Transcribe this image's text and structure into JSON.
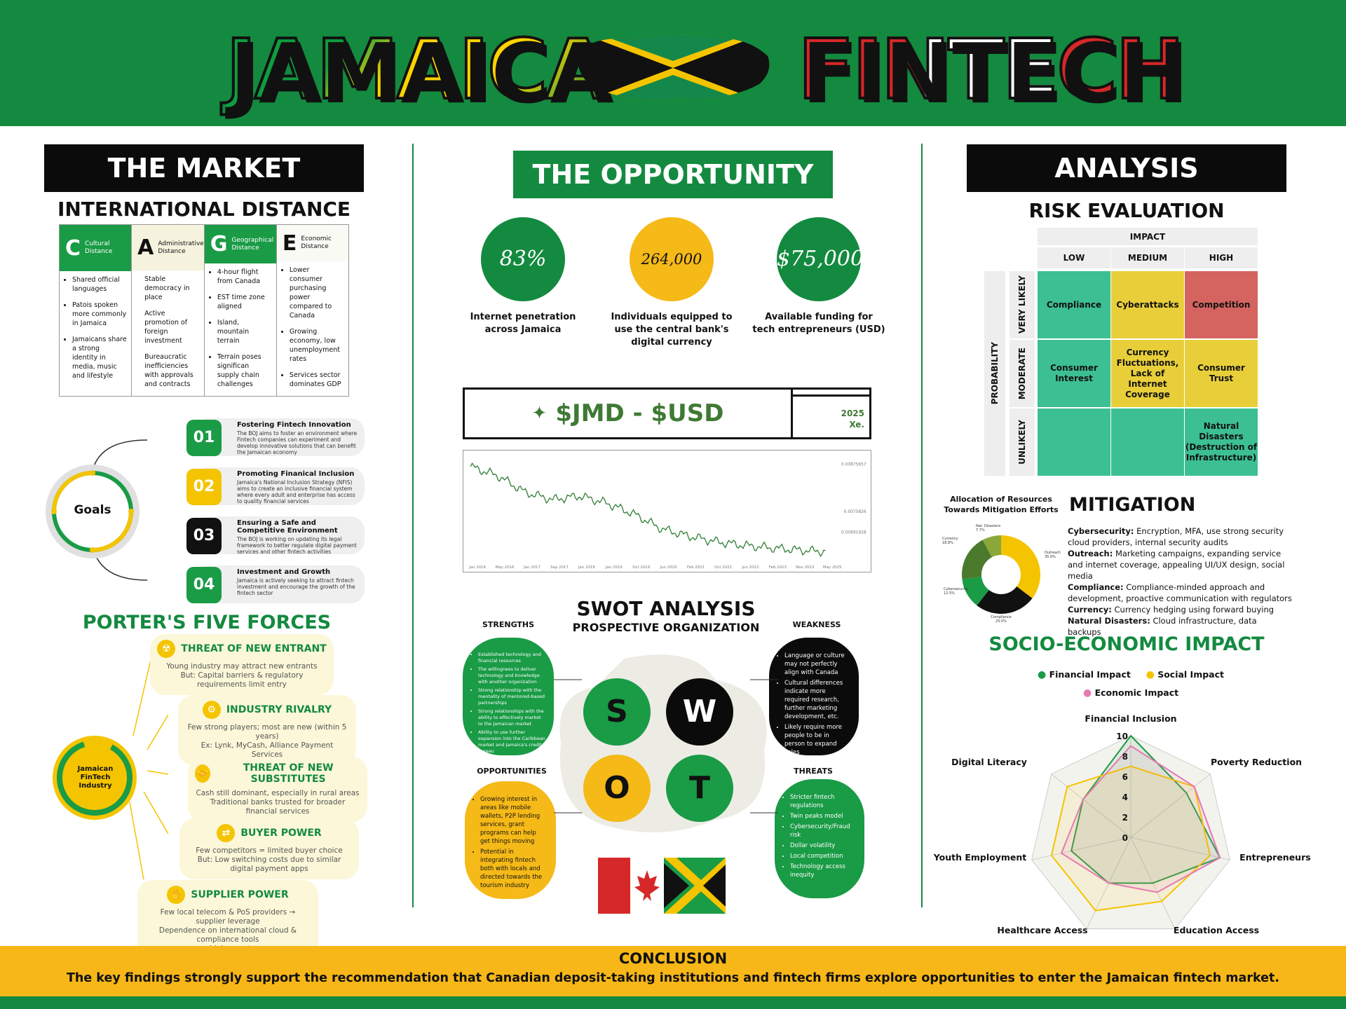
{
  "header": {
    "left_title": "JAMAICA",
    "right_title": "FINTECH"
  },
  "market": {
    "heading": "THE MARKET",
    "cage_heading": "INTERNATIONAL DISTANCE",
    "cage": [
      {
        "letter": "C",
        "label": "Cultural Distance",
        "bullets": [
          "Shared official languages",
          "Patois spoken more commonly in Jamaica",
          "Jamaicans share a strong identity in media, music and lifestyle"
        ]
      },
      {
        "letter": "A",
        "label": "Administrative Distance",
        "bullets": [
          "Stable democracy in place",
          "Active promotion of foreign investment",
          "Bureaucratic inefficiencies with approvals and contracts"
        ]
      },
      {
        "letter": "G",
        "label": "Geographical Distance",
        "bullets": [
          "4-hour flight from Canada",
          "EST time zone aligned",
          "Island, mountain terrain",
          "Terrain poses significan supply chain challenges"
        ]
      },
      {
        "letter": "E",
        "label": "Economic Distance",
        "bullets": [
          "Lower consumer purchasing power compared to Canada",
          "Growing economy, low unemployment rates",
          "Services sector dominates GDP"
        ]
      }
    ],
    "goals_center": "Goals",
    "goals": [
      {
        "num": "01",
        "title": "Fostering Fintech Innovation",
        "desc": "The BOJ aims to foster an environment where Fintech companies can experiment and develop innovative solutions that can benefit the Jamaican economy"
      },
      {
        "num": "02",
        "title": "Promoting Finanical Inclusion",
        "desc": "Jamaica's National Inclusion Strategy (NFIS) aims to create an inclusive financial system where every adult and enterprise has access to quality financial services"
      },
      {
        "num": "03",
        "title": "Ensuring a Safe and Competitive Environment",
        "desc": "The BOJ is working on updating its legal framework to better regulate digital payment services and other fintech activities"
      },
      {
        "num": "04",
        "title": "Investment and Growth",
        "desc": "Jamaica is actively seeking to attract fintech investment and encourage the growth of the fintech sector"
      }
    ],
    "porter_heading": "PORTER'S FIVE FORCES ANALYSIS",
    "porter_center": "Jamaican FinTech Industry",
    "porter": [
      {
        "icon": "radiation-icon",
        "glyph": "☢",
        "title": "THREAT OF NEW ENTRANT",
        "text": "Young industry may attract new entrants\nBut: Capital barriers & regulatory requirements limit entry"
      },
      {
        "icon": "gears-icon",
        "glyph": "⚙",
        "title": "INDUSTRY RIVALRY",
        "text": "Few strong players; most are new (within 5 years)\nEx: Lynk, MyCash, Alliance Payment Services"
      },
      {
        "icon": "handshake-icon",
        "glyph": "🤝",
        "title": "THREAT OF NEW SUBSTITUTES",
        "text": "Cash still dominant, especially in rural areas\nTraditional banks trusted for broader financial services"
      },
      {
        "icon": "exchange-icon",
        "glyph": "⇄",
        "title": "BUYER POWER",
        "text": "Few competitors = limited buyer choice\nBut: Low switching costs due to similar digital payment apps"
      },
      {
        "icon": "hand-coin-icon",
        "glyph": "✋",
        "title": "SUPPLIER POWER",
        "text": "Few local telecom & PoS providers → supplier leverage\nDependence on international cloud & compliance tools\n→ higher costs"
      }
    ]
  },
  "opportunity": {
    "heading": "THE OPPORTUNITY",
    "stats": [
      {
        "value": "83%",
        "label": "Internet penetration across Jamaica",
        "color": "#138a3f",
        "text_color": "#ffffff"
      },
      {
        "value": "264,000",
        "label": "Individuals equipped to use the central bank's digital currency",
        "color": "#f5b918",
        "text_color": "#111111"
      },
      {
        "value": "$75,000",
        "label": "Available funding for tech entrepreneurs (USD)",
        "color": "#138a3f",
        "text_color": "#ffffff"
      }
    ],
    "fx_label": "$JMD - $USD",
    "fx_year": "2025",
    "fx_source": "Xe.",
    "chart_data": {
      "type": "line",
      "title": "",
      "x": [
        "Jan 2016",
        "May 2016",
        "Jan 2017",
        "Sep 2017",
        "Jan 2018",
        "Jan 2019",
        "Oct 2019",
        "Jun 2020",
        "Feb 2021",
        "Oct 2021",
        "Jun 2022",
        "Feb 2023",
        "Nov 2023",
        "May 2025"
      ],
      "series": [
        {
          "values": [
            0.0087,
            0.00845,
            0.008,
            0.0078,
            0.0079,
            0.0077,
            0.0074,
            0.007,
            0.0068,
            0.00665,
            0.00655,
            0.00648,
            0.00642,
            0.00638
          ]
        }
      ],
      "y_tick_labels": [
        "0.00875657",
        "0.0075826",
        "0.00691928"
      ],
      "ylim": [
        0.0063,
        0.0088
      ]
    },
    "swot_heading": "SWOT ANALYSIS",
    "swot_sub": "PROSPECTIVE ORGANIZATION",
    "swot": {
      "strengths_label": "STRENGTHS",
      "weakness_label": "WEAKNESS",
      "opportunities_label": "OPPORTUNITIES",
      "threats_label": "THREATS",
      "strengths": [
        "Established technology and financial resources",
        "The willingness to deliver technology and knowledge with another organization",
        "Strong relationship with the mentality of mentored-based partnerships",
        "Strong relationships with the ability to effectively market to the Jamaican market",
        "Ability to use further expansion into the Caribbean market and Jamaica's credit bureau"
      ],
      "weakness": [
        "Language or culture may not perfectly align with Canada",
        "Cultural differences indicate more required research, further marketing development, etc.",
        "Likely require more people to be in person to expand sales"
      ],
      "opportunities": [
        "Growing interest in areas like mobile wallets, P2P lending services, grant programs can help get things moving",
        "Potential in integrating fintech both with locals and directed towards the tourism industry"
      ],
      "threats": [
        "Stricter fintech regulations",
        "Twin peaks model",
        "Cybersecurity/Fraud risk",
        "Dollar volatility",
        "Local competition",
        "Technology access inequity"
      ]
    }
  },
  "analysis": {
    "heading": "ANALYSIS",
    "risk_heading": "RISK EVALUATION",
    "impact_label": "IMPACT",
    "probability_label": "PROBABILITY",
    "impact_levels": [
      "LOW",
      "MEDIUM",
      "HIGH"
    ],
    "probability_levels": [
      "VERY LIKELY",
      "MODERATE",
      "UNLIKELY"
    ],
    "cells": [
      [
        "Compliance",
        "Cyberattacks",
        "Competition"
      ],
      [
        "Consumer Interest",
        "Currency Fluctuations, Lack of Internet Coverage",
        "Consumer Trust"
      ],
      [
        "",
        "",
        "Natural Disasters (Destruction of Infrastructure)"
      ]
    ],
    "cell_colors": [
      [
        "#3cbf93",
        "#e8cf3a",
        "#d56460"
      ],
      [
        "#3cbf93",
        "#e8cf3a",
        "#e8cf3a"
      ],
      [
        "#3cbf93",
        "#3cbf93",
        "#3cbf93"
      ]
    ],
    "donut_title": "Allocation of Resources Towards Mitigation Efforts",
    "donut": [
      {
        "label": "Outreach",
        "pct": "35.0%",
        "value": 35,
        "color": "#f5c400"
      },
      {
        "label": "Compliance",
        "pct": "25.0%",
        "value": 25,
        "color": "#111111"
      },
      {
        "label": "Cybersecurity",
        "pct": "12.5%",
        "value": 12.5,
        "color": "#1a9b46"
      },
      {
        "label": "Currency",
        "pct": "18.8%",
        "value": 18.8,
        "color": "#4c7a2c"
      },
      {
        "label": "Nat. Disasters",
        "pct": "7.7%",
        "value": 7.7,
        "color": "#8aa83a"
      }
    ],
    "mitigation_heading": "MITIGATION",
    "mitigation": [
      {
        "k": "Cybersecurity:",
        "v": " Encryption, MFA, use strong security cloud providers, internal security audits"
      },
      {
        "k": "Outreach:",
        "v": " Marketing campaigns, expanding service and internet coverage, appealing UI/UX design, social media"
      },
      {
        "k": "Compliance:",
        "v": " Compliance-minded approach and development, proactive communication with regulators"
      },
      {
        "k": "Currency:",
        "v": " Currency hedging using forward buying"
      },
      {
        "k": "Natural Disasters:",
        "v": " Cloud infrastructure, data backups"
      }
    ],
    "socio_heading": "SOCIO-ECONOMIC IMPACT",
    "radar": {
      "legend": [
        {
          "name": "Financial Impact",
          "color": "#1a9b46"
        },
        {
          "name": "Social Impact",
          "color": "#f5c400"
        },
        {
          "name": "Economic Impact",
          "color": "#e67ab1"
        }
      ],
      "axes": [
        "Financial Inclusion",
        "Poverty Reduction",
        "Entrepreneurship",
        "Education Access",
        "Healthcare Access",
        "Youth Employment",
        "Digital Literacy"
      ],
      "ticks": [
        "10",
        "8",
        "6",
        "4",
        "2",
        "0"
      ],
      "series": [
        {
          "name": "Financial Impact",
          "values": [
            10,
            7,
            9,
            5,
            5,
            6,
            6
          ]
        },
        {
          "name": "Social Impact",
          "values": [
            7,
            8,
            8,
            7,
            8,
            8,
            8
          ]
        },
        {
          "name": "Economic Impact",
          "values": [
            9,
            8,
            9,
            6,
            5,
            7,
            6
          ]
        }
      ]
    }
  },
  "conclusion": {
    "title": "CONCLUSION",
    "text": "The key findings strongly support the recommendation that Canadian deposit-taking institutions and fintech firms explore opportunities to enter the Jamaican fintech market."
  }
}
